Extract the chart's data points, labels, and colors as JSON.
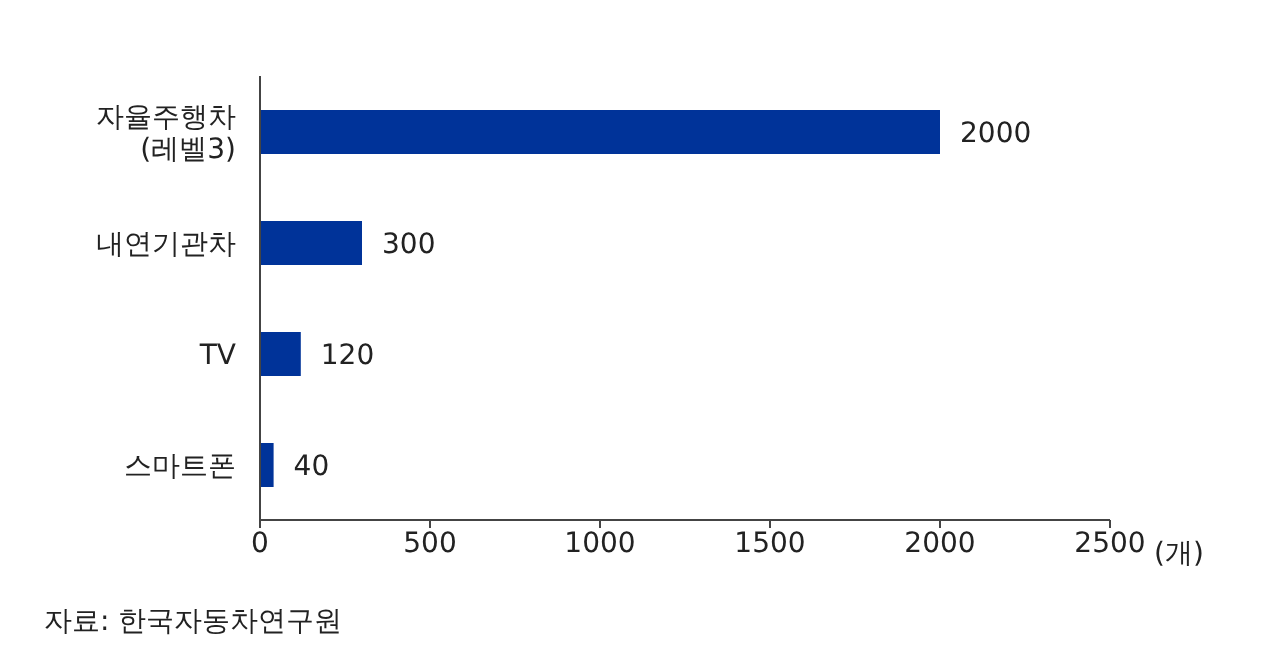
{
  "chart_data": {
    "type": "bar",
    "orientation": "horizontal",
    "categories": [
      "자율주행차\n(레벨3)",
      "내연기관차",
      "TV",
      "스마트폰"
    ],
    "values": [
      2000,
      300,
      120,
      40
    ],
    "color": "#003399",
    "data_labels": true,
    "xlim": [
      0,
      2500
    ],
    "xticks": [
      0,
      500,
      1000,
      1500,
      2000,
      2500
    ],
    "xlabel": "(개)",
    "grid": false,
    "legend": false,
    "annotations": [
      "자료: 한국자동차연구원"
    ]
  }
}
